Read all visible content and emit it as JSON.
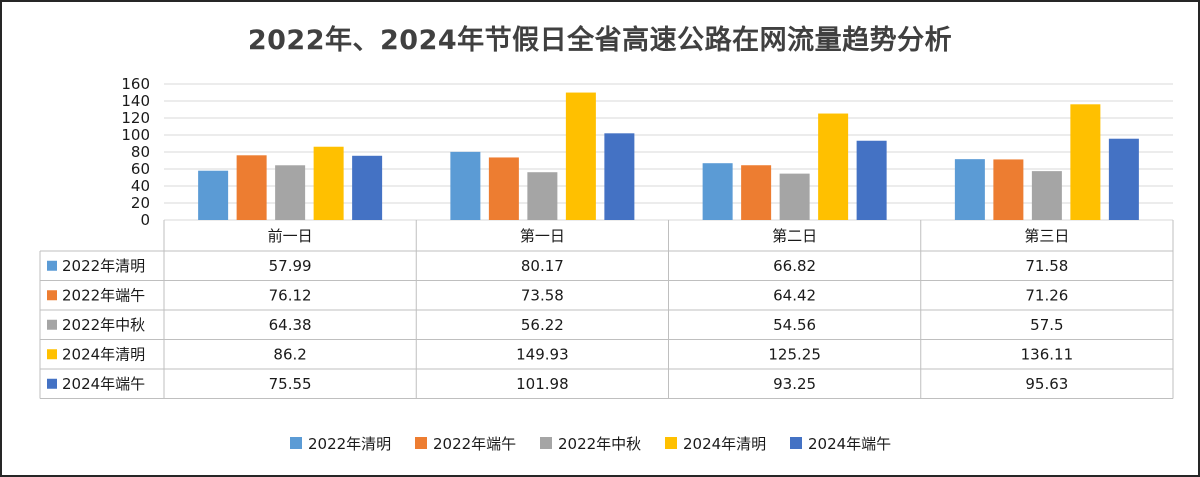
{
  "title": "2022年、2024年节假日全省高速公路在网流量趋势分析",
  "chart_data": {
    "type": "bar",
    "categories": [
      "前一日",
      "第一日",
      "第二日",
      "第三日"
    ],
    "ylim": [
      0,
      160
    ],
    "yticks": [
      0,
      20,
      40,
      60,
      80,
      100,
      120,
      140,
      160
    ],
    "grid": true,
    "legend_position": "bottom",
    "series": [
      {
        "name": "2022年清明",
        "color": "#5B9BD5",
        "values": [
          57.99,
          80.17,
          66.82,
          71.58
        ],
        "labels": [
          "57.99",
          "80.17",
          "66.82",
          "71.58"
        ]
      },
      {
        "name": "2022年端午",
        "color": "#ED7D31",
        "values": [
          76.12,
          73.58,
          64.42,
          71.26
        ],
        "labels": [
          "76.12",
          "73.58",
          "64.42",
          "71.26"
        ]
      },
      {
        "name": "2022年中秋",
        "color": "#A5A5A5",
        "values": [
          64.38,
          56.22,
          54.56,
          57.5
        ],
        "labels": [
          "64.38",
          "56.22",
          "54.56",
          "57.5"
        ]
      },
      {
        "name": "2024年清明",
        "color": "#FFC000",
        "values": [
          86.2,
          149.93,
          125.25,
          136.11
        ],
        "labels": [
          "86.2",
          "149.93",
          "125.25",
          "136.11"
        ]
      },
      {
        "name": "2024年端午",
        "color": "#4472C4",
        "values": [
          75.55,
          101.98,
          93.25,
          95.63
        ],
        "labels": [
          "75.55",
          "101.98",
          "93.25",
          "95.63"
        ]
      }
    ]
  }
}
